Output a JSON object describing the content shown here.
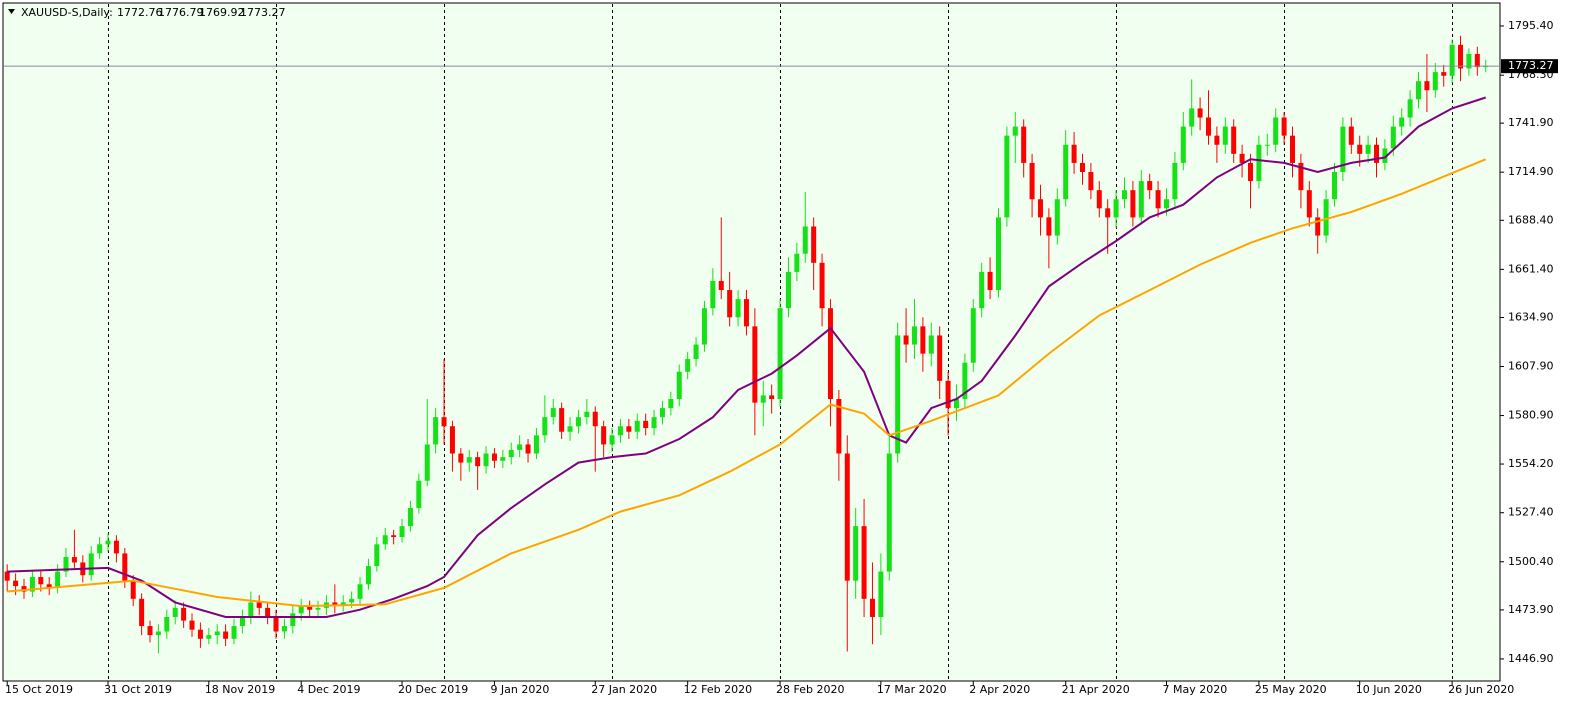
{
  "chart_data": {
    "type": "candlestick",
    "title": "XAUUSD-S,Daily:",
    "open": [
      1495,
      1490,
      1487,
      1484,
      1492,
      1488,
      1486,
      1495,
      1503,
      1500,
      1493,
      1505,
      1510,
      1512,
      1505,
      1490,
      1480,
      1465,
      1460,
      1462,
      1470,
      1475,
      1468,
      1463,
      1458,
      1460,
      1462,
      1458,
      1465,
      1470,
      1478,
      1475,
      1470,
      1462,
      1465,
      1472,
      1476,
      1474,
      1475,
      1478,
      1476,
      1478,
      1480,
      1488,
      1498,
      1510,
      1515,
      1514,
      1520,
      1530,
      1545,
      1565,
      1580,
      1575,
      1560,
      1555,
      1558,
      1553,
      1560,
      1556,
      1558,
      1562,
      1565,
      1560,
      1570,
      1580,
      1585,
      1572,
      1575,
      1580,
      1583,
      1575,
      1565,
      1570,
      1575,
      1572,
      1578,
      1574,
      1580,
      1585,
      1590,
      1605,
      1612,
      1620,
      1640,
      1655,
      1650,
      1635,
      1645,
      1630,
      1588,
      1592,
      1590,
      1640,
      1660,
      1670,
      1685,
      1665,
      1640,
      1590,
      1560,
      1490,
      1520,
      1480,
      1470,
      1495,
      1560,
      1625,
      1620,
      1630,
      1615,
      1625,
      1600,
      1585,
      1590,
      1610,
      1640,
      1660,
      1650,
      1690,
      1735,
      1740,
      1720,
      1700,
      1690,
      1680,
      1700,
      1730,
      1720,
      1715,
      1705,
      1695,
      1690,
      1700,
      1705,
      1690,
      1710,
      1705,
      1695,
      1700,
      1720,
      1740,
      1750,
      1745,
      1735,
      1730,
      1740,
      1725,
      1720,
      1710,
      1730,
      1730,
      1745,
      1735,
      1720,
      1705,
      1690,
      1680,
      1700,
      1715,
      1740,
      1730,
      1725,
      1730,
      1720,
      1728,
      1740,
      1745,
      1755,
      1765,
      1760,
      1770,
      1768,
      1785,
      1772,
      1780,
      1772.76
    ],
    "high": [
      1499,
      1494,
      1491,
      1496,
      1495,
      1492,
      1499,
      1508,
      1518,
      1504,
      1509,
      1514,
      1516,
      1515,
      1508,
      1493,
      1483,
      1468,
      1466,
      1474,
      1479,
      1478,
      1472,
      1467,
      1464,
      1466,
      1466,
      1469,
      1474,
      1484,
      1482,
      1478,
      1474,
      1469,
      1476,
      1480,
      1479,
      1479,
      1482,
      1488,
      1482,
      1484,
      1492,
      1502,
      1514,
      1519,
      1518,
      1524,
      1534,
      1549,
      1590,
      1585,
      1612,
      1578,
      1563,
      1562,
      1561,
      1564,
      1563,
      1562,
      1566,
      1570,
      1568,
      1574,
      1592,
      1590,
      1588,
      1580,
      1584,
      1590,
      1586,
      1578,
      1574,
      1579,
      1579,
      1582,
      1582,
      1584,
      1589,
      1594,
      1609,
      1616,
      1624,
      1644,
      1662,
      1690,
      1660,
      1650,
      1650,
      1640,
      1600,
      1598,
      1645,
      1668,
      1676,
      1704,
      1690,
      1670,
      1645,
      1595,
      1570,
      1530,
      1535,
      1500,
      1505,
      1570,
      1632,
      1640,
      1645,
      1635,
      1632,
      1630,
      1605,
      1598,
      1615,
      1645,
      1665,
      1668,
      1695,
      1740,
      1748,
      1744,
      1725,
      1708,
      1695,
      1706,
      1738,
      1737,
      1725,
      1720,
      1710,
      1700,
      1705,
      1712,
      1710,
      1716,
      1714,
      1710,
      1706,
      1726,
      1748,
      1766,
      1756,
      1760,
      1740,
      1745,
      1744,
      1730,
      1725,
      1735,
      1736,
      1750,
      1748,
      1740,
      1725,
      1710,
      1695,
      1705,
      1720,
      1745,
      1745,
      1735,
      1735,
      1734,
      1733,
      1746,
      1750,
      1760,
      1770,
      1780,
      1775,
      1774,
      1788,
      1790,
      1783,
      1784,
      1776.79
    ],
    "low": [
      1484,
      1482,
      1480,
      1481,
      1484,
      1482,
      1483,
      1492,
      1496,
      1489,
      1490,
      1502,
      1506,
      1500,
      1486,
      1476,
      1460,
      1456,
      1450,
      1458,
      1466,
      1464,
      1459,
      1453,
      1455,
      1455,
      1454,
      1455,
      1461,
      1466,
      1471,
      1466,
      1458,
      1458,
      1461,
      1468,
      1470,
      1470,
      1471,
      1472,
      1473,
      1475,
      1477,
      1485,
      1495,
      1507,
      1510,
      1511,
      1517,
      1527,
      1542,
      1560,
      1565,
      1550,
      1545,
      1550,
      1540,
      1549,
      1552,
      1552,
      1554,
      1558,
      1555,
      1557,
      1566,
      1576,
      1568,
      1567,
      1571,
      1576,
      1550,
      1558,
      1561,
      1566,
      1568,
      1568,
      1570,
      1570,
      1576,
      1581,
      1586,
      1601,
      1608,
      1616,
      1636,
      1645,
      1630,
      1630,
      1625,
      1570,
      1575,
      1582,
      1586,
      1635,
      1655,
      1665,
      1650,
      1630,
      1575,
      1545,
      1451,
      1480,
      1470,
      1455,
      1460,
      1490,
      1555,
      1610,
      1612,
      1605,
      1608,
      1590,
      1570,
      1578,
      1585,
      1605,
      1635,
      1645,
      1646,
      1685,
      1720,
      1712,
      1690,
      1680,
      1662,
      1675,
      1696,
      1714,
      1708,
      1700,
      1690,
      1670,
      1684,
      1695,
      1685,
      1686,
      1700,
      1690,
      1691,
      1696,
      1716,
      1735,
      1738,
      1730,
      1720,
      1725,
      1720,
      1712,
      1695,
      1706,
      1724,
      1726,
      1730,
      1712,
      1695,
      1685,
      1670,
      1676,
      1696,
      1710,
      1725,
      1718,
      1720,
      1712,
      1716,
      1724,
      1735,
      1740,
      1750,
      1748,
      1756,
      1762,
      1764,
      1765,
      1768,
      1768,
      1769.92
    ],
    "close": [
      1490,
      1487,
      1484,
      1492,
      1488,
      1486,
      1495,
      1503,
      1500,
      1493,
      1505,
      1510,
      1512,
      1505,
      1490,
      1480,
      1465,
      1460,
      1462,
      1470,
      1475,
      1468,
      1463,
      1458,
      1460,
      1462,
      1458,
      1465,
      1470,
      1478,
      1475,
      1470,
      1462,
      1465,
      1472,
      1476,
      1474,
      1475,
      1478,
      1476,
      1478,
      1480,
      1488,
      1498,
      1510,
      1515,
      1514,
      1520,
      1530,
      1545,
      1565,
      1580,
      1575,
      1560,
      1555,
      1558,
      1553,
      1560,
      1556,
      1558,
      1562,
      1565,
      1560,
      1570,
      1580,
      1585,
      1572,
      1575,
      1580,
      1583,
      1575,
      1565,
      1570,
      1575,
      1572,
      1578,
      1574,
      1580,
      1585,
      1590,
      1605,
      1612,
      1620,
      1640,
      1655,
      1650,
      1635,
      1645,
      1630,
      1588,
      1592,
      1590,
      1640,
      1660,
      1670,
      1685,
      1665,
      1640,
      1590,
      1560,
      1490,
      1520,
      1480,
      1470,
      1495,
      1560,
      1625,
      1620,
      1630,
      1615,
      1625,
      1600,
      1585,
      1590,
      1610,
      1640,
      1660,
      1650,
      1690,
      1735,
      1740,
      1720,
      1700,
      1690,
      1680,
      1700,
      1730,
      1720,
      1715,
      1705,
      1695,
      1690,
      1700,
      1705,
      1690,
      1710,
      1705,
      1695,
      1700,
      1720,
      1740,
      1750,
      1745,
      1735,
      1730,
      1740,
      1725,
      1720,
      1710,
      1730,
      1730,
      1745,
      1735,
      1720,
      1705,
      1690,
      1680,
      1700,
      1715,
      1740,
      1730,
      1725,
      1730,
      1720,
      1728,
      1740,
      1745,
      1755,
      1765,
      1760,
      1770,
      1768,
      1785,
      1772,
      1780,
      1772.76,
      1773.27
    ],
    "up_color": "#16e016",
    "down_color": "#ff0000",
    "last_price_color": "#8a8a9a",
    "series": [
      {
        "type": "line",
        "color": "#800080",
        "x": [
          0,
          12,
          16,
          20,
          26,
          32,
          38,
          42,
          46,
          50,
          52,
          56,
          60,
          64,
          68,
          72,
          76,
          80,
          84,
          87,
          91,
          94,
          98,
          102,
          105,
          107,
          110,
          113,
          116,
          120,
          124,
          128,
          132,
          136,
          140,
          144,
          148,
          152,
          156,
          160,
          164,
          168,
          172,
          176
        ],
        "values": [
          1495,
          1497,
          1490,
          1478,
          1470,
          1470,
          1470,
          1474,
          1480,
          1487,
          1492,
          1515,
          1530,
          1543,
          1555,
          1558,
          1560,
          1568,
          1580,
          1595,
          1604,
          1614,
          1629,
          1605,
          1570,
          1566,
          1585,
          1590,
          1600,
          1625,
          1652,
          1665,
          1677,
          1690,
          1697,
          1712,
          1722,
          1720,
          1715,
          1720,
          1723,
          1740,
          1750,
          1756
        ]
      },
      {
        "type": "line",
        "color": "#ffa500",
        "x": [
          0,
          15,
          25,
          35,
          45,
          52,
          60,
          68,
          73,
          80,
          86,
          92,
          98,
          102,
          105,
          110,
          118,
          124,
          130,
          136,
          142,
          148,
          153,
          160,
          166,
          176
        ],
        "values": [
          1484,
          1490,
          1481,
          1476,
          1477,
          1486,
          1505,
          1518,
          1528,
          1537,
          1550,
          1565,
          1587,
          1582,
          1570,
          1578,
          1592,
          1615,
          1636,
          1650,
          1664,
          1676,
          1684,
          1693,
          1703,
          1722
        ]
      }
    ],
    "xlim": [
      -0.5,
      177.7
    ],
    "ylim": [
      1435.3,
      1809.7
    ],
    "yticks": [
      {
        "value": 1795.4,
        "label": "1795.40"
      },
      {
        "value": 1768.3,
        "label": "1768.30"
      },
      {
        "value": 1741.9,
        "label": "1741.90"
      },
      {
        "value": 1714.9,
        "label": "1714.90"
      },
      {
        "value": 1688.4,
        "label": "1688.40"
      },
      {
        "value": 1661.4,
        "label": "1661.40"
      },
      {
        "value": 1634.9,
        "label": "1634.90"
      },
      {
        "value": 1607.9,
        "label": "1607.90"
      },
      {
        "value": 1580.9,
        "label": "1580.90"
      },
      {
        "value": 1554.2,
        "label": "1554.20"
      },
      {
        "value": 1527.4,
        "label": "1527.40"
      },
      {
        "value": 1500.4,
        "label": "1500.40"
      },
      {
        "value": 1473.9,
        "label": "1473.90"
      },
      {
        "value": 1446.9,
        "label": "1446.90"
      }
    ],
    "xticks": [
      {
        "value": 0,
        "label": "15 Oct 2019"
      },
      {
        "value": 12,
        "label": "31 Oct 2019"
      },
      {
        "value": 24,
        "label": "18 Nov 2019"
      },
      {
        "value": 35,
        "label": "4 Dec 2019"
      },
      {
        "value": 47,
        "label": "20 Dec 2019"
      },
      {
        "value": 58,
        "label": "9 Jan 2020"
      },
      {
        "value": 70,
        "label": "27 Jan 2020"
      },
      {
        "value": 81,
        "label": "12 Feb 2020"
      },
      {
        "value": 92,
        "label": "28 Feb 2020"
      },
      {
        "value": 104,
        "label": "17 Mar 2020"
      },
      {
        "value": 115,
        "label": "2 Apr 2020"
      },
      {
        "value": 126,
        "label": "21 Apr 2020"
      },
      {
        "value": 138,
        "label": "7 May 2020"
      },
      {
        "value": 149,
        "label": "25 May 2020"
      },
      {
        "value": 161,
        "label": "10 Jun 2020"
      },
      {
        "value": 172,
        "label": "26 Jun 2020"
      }
    ],
    "xgrid": [
      12,
      32,
      52,
      72,
      92,
      112,
      132,
      152,
      172
    ]
  }
}
